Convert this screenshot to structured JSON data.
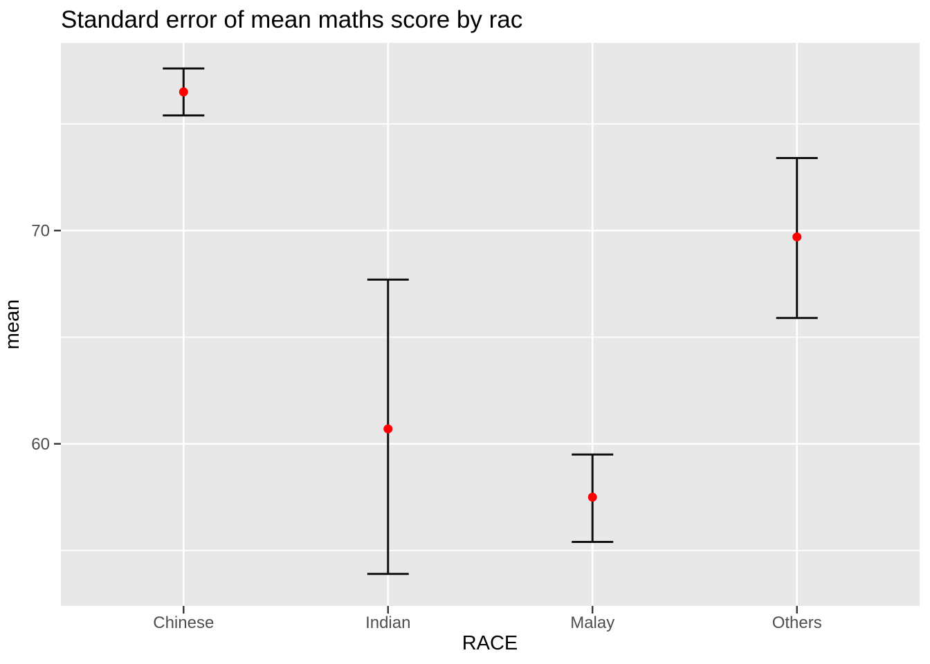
{
  "chart_data": {
    "type": "scatter",
    "subtype": "errorbar",
    "title": "Standard error of mean maths score by rac",
    "xlabel": "RACE",
    "ylabel": "mean",
    "categories": [
      "Chinese",
      "Indian",
      "Malay",
      "Others"
    ],
    "series": [
      {
        "name": "mean",
        "values": [
          76.5,
          60.7,
          57.5,
          69.7
        ],
        "lower": [
          75.4,
          53.9,
          55.4,
          65.9
        ],
        "upper": [
          77.6,
          67.7,
          59.5,
          73.4
        ]
      }
    ],
    "ylim": [
      52.4,
      78.8
    ],
    "yticks": [
      60,
      70
    ],
    "yticks_minor": [
      55,
      65,
      75
    ],
    "grid": true,
    "legend": false,
    "colors": {
      "point": "#ff0000",
      "errorbar": "#0f0f0f",
      "panel_bg": "#e8e8e8",
      "grid": "#ffffff",
      "axis_text": "#4d4d4d",
      "tick": "#333333",
      "title": "#000000"
    }
  }
}
